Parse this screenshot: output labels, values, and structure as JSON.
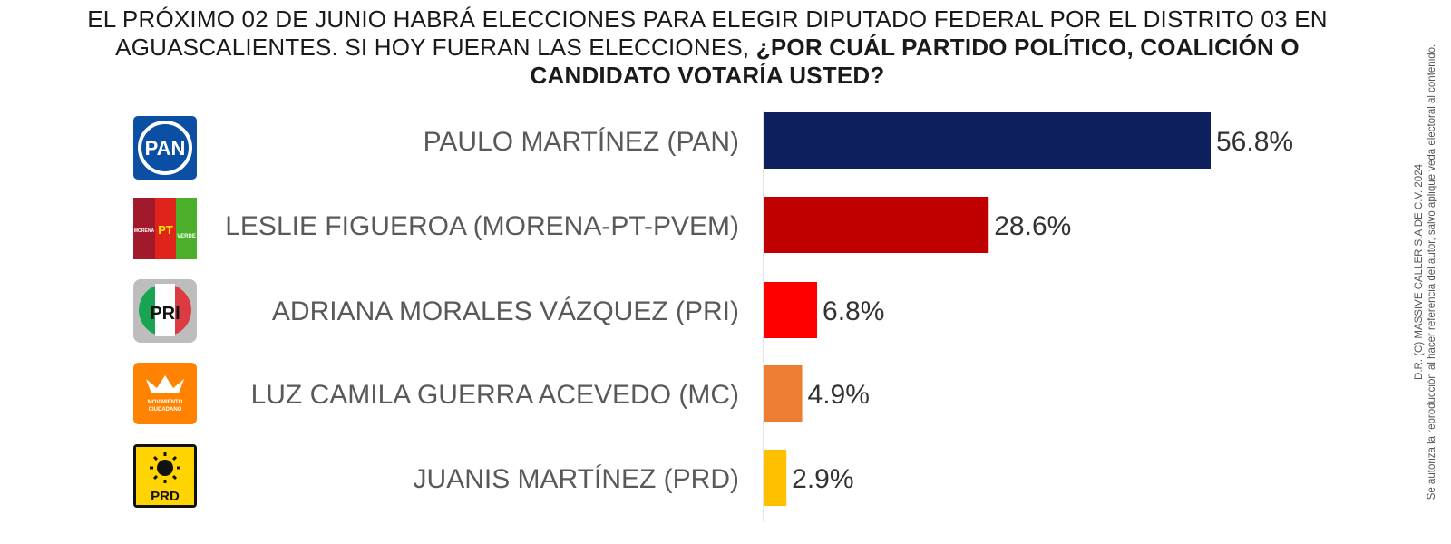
{
  "question": {
    "plain": "EL PRÓXIMO 02 DE JUNIO HABRÁ ELECCIONES PARA ELEGIR DIPUTADO FEDERAL POR EL  DISTRITO 03 EN AGUASCALIENTES.  SI HOY FUERAN LAS ELECCIONES, ",
    "bold": "¿POR CUÁL PARTIDO POLÍTICO, COALICIÓN O CANDIDATO VOTARÍA USTED?"
  },
  "copyright": {
    "line1": "D.R. (C) MASSIVE CALLER S.A DE C.V. 2024",
    "line2": "Se autoriza la reproducción al hacer referencia del autor, salvo aplique veda electoral al contenido."
  },
  "logos": {
    "pan": "PAN",
    "morena": "MORENA",
    "pt": "PT",
    "verde": "VERDE",
    "pri": "PRI",
    "mc_line1": "MOVIMIENTO",
    "mc_line2": "CIUDADANO",
    "prd": "PRD"
  },
  "chart_data": {
    "type": "bar",
    "orientation": "horizontal",
    "categories": [
      "PAULO MARTÍNEZ (PAN)",
      "LESLIE FIGUEROA (MORENA-PT-PVEM)",
      "ADRIANA MORALES VÁZQUEZ (PRI)",
      "LUZ CAMILA GUERRA ACEVEDO  (MC)",
      "JUANIS MARTÍNEZ (PRD)"
    ],
    "values": [
      56.8,
      28.6,
      6.8,
      4.9,
      2.9
    ],
    "value_labels": [
      "56.8%",
      "28.6%",
      "6.8%",
      "4.9%",
      "2.9%"
    ],
    "colors": [
      "#0d1f5c",
      "#c00000",
      "#ff0000",
      "#ed7d31",
      "#ffc000"
    ],
    "party_logos": [
      "pan-logo",
      "morena-pt-pvem-logo",
      "pri-logo",
      "mc-logo",
      "prd-logo"
    ],
    "unit": "%",
    "xlim": [
      0,
      60
    ],
    "grid": false,
    "legend": "none"
  }
}
